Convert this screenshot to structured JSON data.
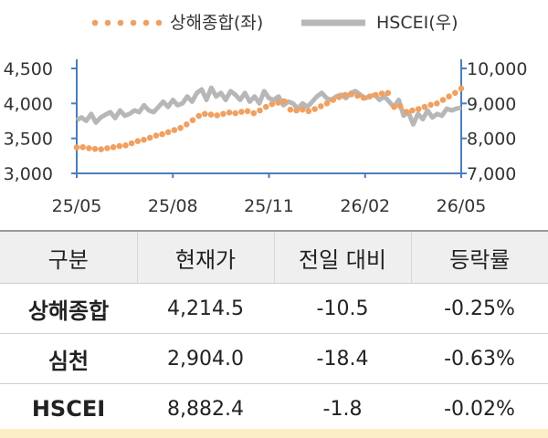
{
  "chart_data": {
    "type": "line",
    "x_ticks": [
      "25/05",
      "25/08",
      "25/11",
      "26/02",
      "26/05"
    ],
    "left_axis": {
      "ylim": [
        3000,
        4500
      ],
      "ticks": [
        "3,000",
        "3,500",
        "4,000",
        "4,500"
      ]
    },
    "right_axis": {
      "ylim": [
        7000,
        10000
      ],
      "ticks": [
        "7,000",
        "8,000",
        "9,000",
        "10,000"
      ]
    },
    "series": [
      {
        "name": "상해종합(좌)",
        "axis": "left",
        "color": "#f0a060",
        "style": "dotted",
        "values": [
          3370,
          3375,
          3360,
          3350,
          3345,
          3360,
          3375,
          3390,
          3400,
          3430,
          3460,
          3480,
          3510,
          3540,
          3560,
          3590,
          3620,
          3650,
          3700,
          3760,
          3820,
          3850,
          3840,
          3830,
          3850,
          3870,
          3860,
          3880,
          3890,
          3860,
          3900,
          3950,
          3990,
          4010,
          4030,
          3910,
          3900,
          3910,
          3890,
          3920,
          3960,
          4000,
          4050,
          4090,
          4120,
          4130,
          4110,
          4080,
          4100,
          4120,
          4140,
          4150,
          3950,
          3960,
          3880,
          3900,
          3920,
          3950,
          3980,
          4000,
          4050,
          4100,
          4150,
          4214
        ]
      },
      {
        "name": "HSCEI(우)",
        "axis": "right",
        "color": "#b7b7b7",
        "style": "solid",
        "values": [
          8520,
          8600,
          8500,
          8700,
          8450,
          8600,
          8680,
          8750,
          8580,
          8800,
          8650,
          8700,
          8800,
          8750,
          8950,
          8800,
          8750,
          8900,
          9050,
          8900,
          9100,
          8950,
          9000,
          9200,
          9050,
          9300,
          9400,
          9100,
          9450,
          9200,
          9300,
          9100,
          9350,
          9250,
          9100,
          9300,
          9050,
          9200,
          9000,
          9350,
          9150,
          9100,
          9200,
          8950,
          9050,
          9000,
          8850,
          9000,
          8900,
          9050,
          9200,
          9300,
          9150,
          9100,
          9200,
          9250,
          9150,
          9300,
          9350,
          9250,
          9150,
          9200,
          9250,
          9100,
          9200,
          9050,
          8900,
          9100,
          8650,
          8750,
          8400,
          8700,
          8550,
          8800,
          8600,
          8700,
          8650,
          8850,
          8800,
          8850,
          8882
        ]
      }
    ]
  },
  "table": {
    "headers": [
      "구분",
      "현재가",
      "전일 대비",
      "등락률"
    ],
    "rows": [
      {
        "name": "상해종합",
        "price": "4,214.5",
        "change": "-10.5",
        "rate": "-0.25%"
      },
      {
        "name": "심천",
        "price": "2,904.0",
        "change": "-18.4",
        "rate": "-0.63%"
      },
      {
        "name": "HSCEI",
        "price": "8,882.4",
        "change": "-1.8",
        "rate": "-0.02%"
      }
    ]
  }
}
